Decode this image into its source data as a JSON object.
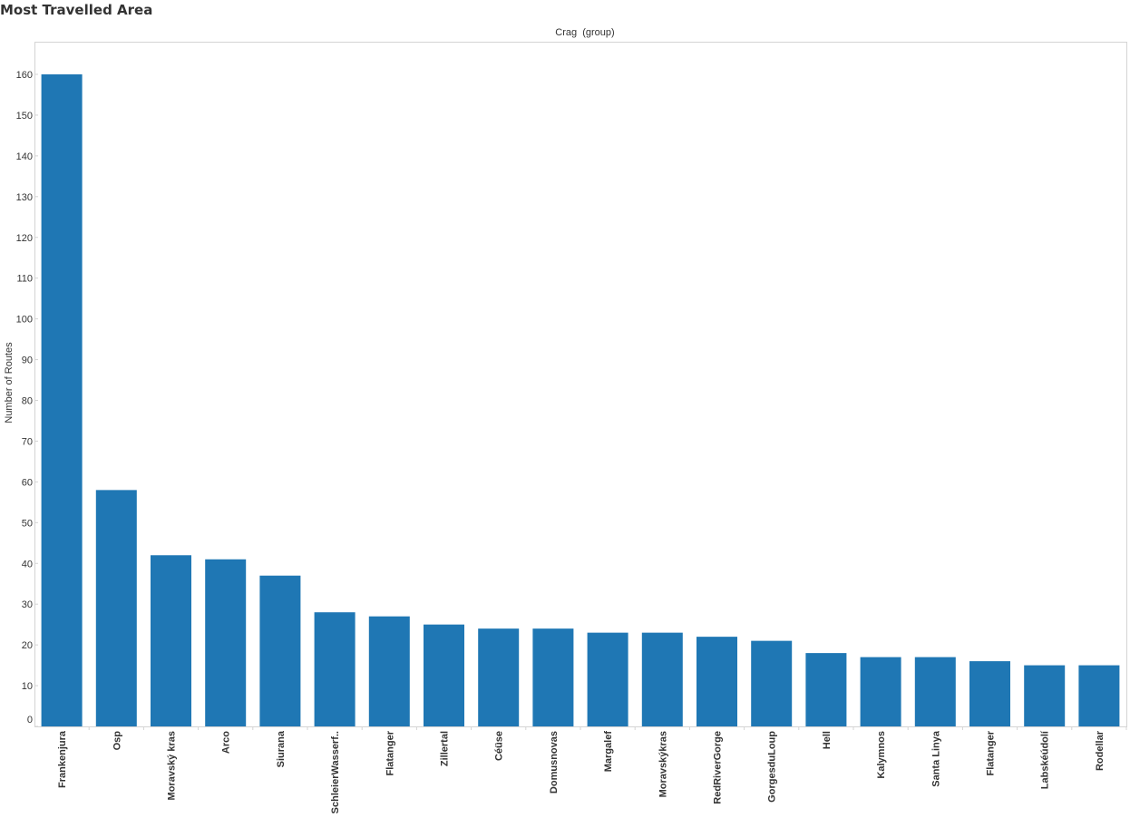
{
  "page": {
    "title": "Most Travelled Area"
  },
  "chart_data": {
    "type": "bar",
    "title": "Most Travelled Area",
    "header_label": "Crag  (group)",
    "xlabel": "",
    "ylabel": "Number of Routes",
    "ylim": [
      0,
      160
    ],
    "yticks": [
      0,
      10,
      20,
      30,
      40,
      50,
      60,
      70,
      80,
      90,
      100,
      110,
      120,
      130,
      140,
      150,
      160
    ],
    "bar_color": "#1f77b4",
    "grid": false,
    "categories": [
      "Frankenjura",
      "Osp",
      "Moravský kras",
      "Arco",
      "Siurana",
      "SchleierWasserf..",
      "Flatanger",
      "Zillertal",
      "Céüse",
      "Domusnovas",
      "Margalef",
      "Moravskýkras",
      "RedRiverGorge",
      "GorgesduLoup",
      "Hell",
      "Kalymnos",
      "Santa Linya",
      "Flatanger",
      "Labskéúdolí",
      "Rodellar"
    ],
    "values": [
      160,
      58,
      42,
      41,
      37,
      28,
      27,
      25,
      24,
      24,
      23,
      23,
      22,
      21,
      18,
      17,
      17,
      16,
      15,
      15
    ]
  }
}
